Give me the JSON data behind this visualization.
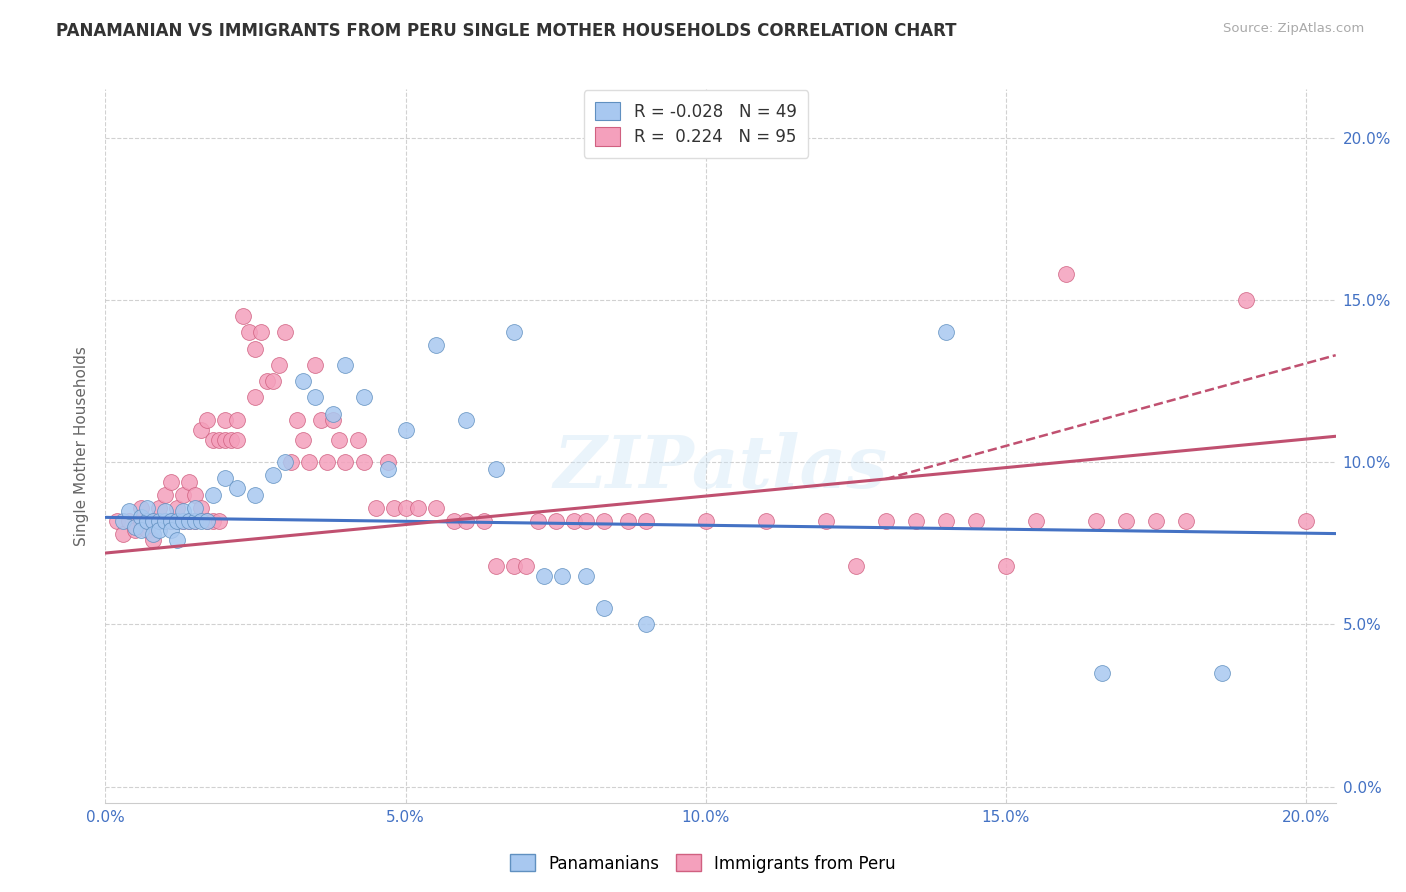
{
  "title": "PANAMANIAN VS IMMIGRANTS FROM PERU SINGLE MOTHER HOUSEHOLDS CORRELATION CHART",
  "source": "Source: ZipAtlas.com",
  "ylabel": "Single Mother Households",
  "xlim": [
    0.0,
    0.205
  ],
  "ylim": [
    -0.005,
    0.215
  ],
  "xticks": [
    0.0,
    0.05,
    0.1,
    0.15,
    0.2
  ],
  "yticks": [
    0.0,
    0.05,
    0.1,
    0.15,
    0.2
  ],
  "color_blue": "#a8c8f0",
  "color_pink": "#f4a0bc",
  "color_blue_line": "#4472c4",
  "color_pink_line": "#c05070",
  "color_blue_edge": "#6090c0",
  "color_pink_edge": "#d06080",
  "trendline_blue_start": 0.083,
  "trendline_blue_end": 0.078,
  "trendline_pink_start": 0.072,
  "trendline_pink_end": 0.108,
  "watermark": "ZIPatlas",
  "background_color": "#ffffff",
  "grid_color": "#cccccc",
  "blue_dots": [
    [
      0.003,
      0.082
    ],
    [
      0.004,
      0.085
    ],
    [
      0.005,
      0.08
    ],
    [
      0.006,
      0.083
    ],
    [
      0.006,
      0.079
    ],
    [
      0.007,
      0.082
    ],
    [
      0.007,
      0.086
    ],
    [
      0.008,
      0.082
    ],
    [
      0.008,
      0.078
    ],
    [
      0.009,
      0.082
    ],
    [
      0.009,
      0.079
    ],
    [
      0.01,
      0.082
    ],
    [
      0.01,
      0.085
    ],
    [
      0.011,
      0.082
    ],
    [
      0.011,
      0.079
    ],
    [
      0.012,
      0.082
    ],
    [
      0.012,
      0.076
    ],
    [
      0.013,
      0.082
    ],
    [
      0.013,
      0.085
    ],
    [
      0.014,
      0.082
    ],
    [
      0.015,
      0.082
    ],
    [
      0.015,
      0.086
    ],
    [
      0.016,
      0.082
    ],
    [
      0.017,
      0.082
    ],
    [
      0.018,
      0.09
    ],
    [
      0.02,
      0.095
    ],
    [
      0.022,
      0.092
    ],
    [
      0.025,
      0.09
    ],
    [
      0.028,
      0.096
    ],
    [
      0.03,
      0.1
    ],
    [
      0.033,
      0.125
    ],
    [
      0.035,
      0.12
    ],
    [
      0.038,
      0.115
    ],
    [
      0.04,
      0.13
    ],
    [
      0.043,
      0.12
    ],
    [
      0.047,
      0.098
    ],
    [
      0.05,
      0.11
    ],
    [
      0.055,
      0.136
    ],
    [
      0.06,
      0.113
    ],
    [
      0.065,
      0.098
    ],
    [
      0.068,
      0.14
    ],
    [
      0.073,
      0.065
    ],
    [
      0.076,
      0.065
    ],
    [
      0.08,
      0.065
    ],
    [
      0.083,
      0.055
    ],
    [
      0.09,
      0.05
    ],
    [
      0.14,
      0.14
    ],
    [
      0.166,
      0.035
    ],
    [
      0.186,
      0.035
    ]
  ],
  "pink_dots": [
    [
      0.002,
      0.082
    ],
    [
      0.003,
      0.078
    ],
    [
      0.004,
      0.082
    ],
    [
      0.005,
      0.079
    ],
    [
      0.006,
      0.082
    ],
    [
      0.006,
      0.086
    ],
    [
      0.007,
      0.079
    ],
    [
      0.007,
      0.082
    ],
    [
      0.008,
      0.076
    ],
    [
      0.008,
      0.082
    ],
    [
      0.009,
      0.082
    ],
    [
      0.009,
      0.086
    ],
    [
      0.01,
      0.082
    ],
    [
      0.01,
      0.09
    ],
    [
      0.011,
      0.082
    ],
    [
      0.011,
      0.094
    ],
    [
      0.012,
      0.082
    ],
    [
      0.012,
      0.086
    ],
    [
      0.013,
      0.082
    ],
    [
      0.013,
      0.09
    ],
    [
      0.014,
      0.082
    ],
    [
      0.014,
      0.094
    ],
    [
      0.015,
      0.082
    ],
    [
      0.015,
      0.09
    ],
    [
      0.016,
      0.086
    ],
    [
      0.016,
      0.11
    ],
    [
      0.017,
      0.082
    ],
    [
      0.017,
      0.113
    ],
    [
      0.018,
      0.082
    ],
    [
      0.018,
      0.107
    ],
    [
      0.019,
      0.082
    ],
    [
      0.019,
      0.107
    ],
    [
      0.02,
      0.107
    ],
    [
      0.02,
      0.113
    ],
    [
      0.021,
      0.107
    ],
    [
      0.022,
      0.113
    ],
    [
      0.022,
      0.107
    ],
    [
      0.023,
      0.145
    ],
    [
      0.024,
      0.14
    ],
    [
      0.025,
      0.135
    ],
    [
      0.025,
      0.12
    ],
    [
      0.026,
      0.14
    ],
    [
      0.027,
      0.125
    ],
    [
      0.028,
      0.125
    ],
    [
      0.029,
      0.13
    ],
    [
      0.03,
      0.14
    ],
    [
      0.031,
      0.1
    ],
    [
      0.032,
      0.113
    ],
    [
      0.033,
      0.107
    ],
    [
      0.034,
      0.1
    ],
    [
      0.035,
      0.13
    ],
    [
      0.036,
      0.113
    ],
    [
      0.037,
      0.1
    ],
    [
      0.038,
      0.113
    ],
    [
      0.039,
      0.107
    ],
    [
      0.04,
      0.1
    ],
    [
      0.042,
      0.107
    ],
    [
      0.043,
      0.1
    ],
    [
      0.045,
      0.086
    ],
    [
      0.047,
      0.1
    ],
    [
      0.048,
      0.086
    ],
    [
      0.05,
      0.086
    ],
    [
      0.052,
      0.086
    ],
    [
      0.055,
      0.086
    ],
    [
      0.058,
      0.082
    ],
    [
      0.06,
      0.082
    ],
    [
      0.063,
      0.082
    ],
    [
      0.065,
      0.068
    ],
    [
      0.068,
      0.068
    ],
    [
      0.07,
      0.068
    ],
    [
      0.072,
      0.082
    ],
    [
      0.075,
      0.082
    ],
    [
      0.078,
      0.082
    ],
    [
      0.08,
      0.082
    ],
    [
      0.083,
      0.082
    ],
    [
      0.087,
      0.082
    ],
    [
      0.09,
      0.082
    ],
    [
      0.1,
      0.082
    ],
    [
      0.11,
      0.082
    ],
    [
      0.12,
      0.082
    ],
    [
      0.125,
      0.068
    ],
    [
      0.13,
      0.082
    ],
    [
      0.135,
      0.082
    ],
    [
      0.14,
      0.082
    ],
    [
      0.145,
      0.082
    ],
    [
      0.15,
      0.068
    ],
    [
      0.155,
      0.082
    ],
    [
      0.16,
      0.158
    ],
    [
      0.165,
      0.082
    ],
    [
      0.17,
      0.082
    ],
    [
      0.175,
      0.082
    ],
    [
      0.18,
      0.082
    ],
    [
      0.19,
      0.15
    ],
    [
      0.2,
      0.082
    ]
  ]
}
